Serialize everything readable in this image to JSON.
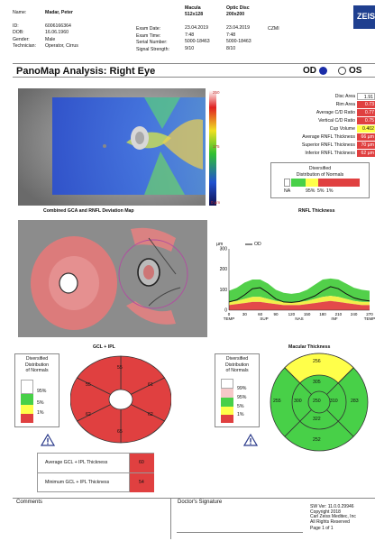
{
  "header": {
    "name_label": "Name:",
    "name_value": "Madar, Peter",
    "id_label": "ID:",
    "id_value": "6006166364",
    "dob_label": "DOB:",
    "dob_value": "16.06.1960",
    "gender_label": "Gender:",
    "gender_value": "Male",
    "tech_label": "Technician:",
    "tech_value": "Operator, Cirrus",
    "exam_date_label": "Exam Date:",
    "exam_time_label": "Exam Time:",
    "serial_label": "Serial Number:",
    "signal_label": "Signal Strength:",
    "macula_title": "Macula",
    "macula_sub": "512x128",
    "disc_title": "Optic Disc",
    "disc_sub": "200x200",
    "macula_date": "23.04.2019",
    "macula_time": "7:48",
    "macula_serial": "5000-18463",
    "macula_signal": "9/10",
    "disc_date": "23.04.2019",
    "disc_time": "7:48",
    "disc_serial": "5000-18463",
    "disc_signal": "8/10",
    "czm": "CZMI",
    "logo": "ZEIS"
  },
  "title": "PanoMap Analysis: Right Eye",
  "eye": {
    "od": "OD",
    "os": "OS"
  },
  "colorbar": {
    "top": "250",
    "mid": "175",
    "bottom": "0 µm"
  },
  "combined_caption": "Combined GCA and RNFL Deviation Map",
  "stats": [
    {
      "label": "Disc Area",
      "value": "1.91 mm",
      "color": "v-wht"
    },
    {
      "label": "Rim Area",
      "value": "0.73 mm",
      "color": "v-red"
    },
    {
      "label": "Average C/D Ratio",
      "value": "0.77",
      "color": "v-red"
    },
    {
      "label": "Vertical C/D Ratio",
      "value": "0.75",
      "color": "v-red"
    },
    {
      "label": "Cup Volume",
      "value": "0.402 mm",
      "color": "v-yel"
    },
    {
      "label": "Average RNFL Thickness",
      "value": "66 µm",
      "color": "v-red"
    },
    {
      "label": "Superior RNFL Thickness",
      "value": "70 µm",
      "color": "v-red"
    },
    {
      "label": "Inferior RNFL Thickness",
      "value": "62 µm",
      "color": "v-red"
    }
  ],
  "dist_legend": {
    "title1": "Diversified",
    "title2": "Distribution of Normals",
    "na": "NA",
    "p95": "95%",
    "p5": "5%",
    "p1": "1%"
  },
  "rnfl_caption": "RNFL Thickness",
  "chart_data": {
    "type": "line",
    "ylabel": "µm",
    "legend": "OD",
    "ylim": [
      0,
      300
    ],
    "y_ticks": [
      "300",
      "200",
      "100",
      "0"
    ],
    "x_ticks": [
      "0",
      "30",
      "60",
      "90",
      "120",
      "150",
      "180",
      "210",
      "240",
      "270"
    ],
    "x_labels": [
      "TEMP",
      "SUP",
      "NAS",
      "INF",
      "TEMP"
    ],
    "series": [
      {
        "name": "OD",
        "x": [
          0,
          15,
          30,
          45,
          60,
          75,
          90,
          105,
          120,
          135,
          150,
          165,
          180,
          195,
          210,
          225,
          240,
          255,
          270
        ],
        "values": [
          40,
          50,
          75,
          105,
          110,
          85,
          55,
          40,
          38,
          42,
          55,
          70,
          95,
          115,
          105,
          80,
          60,
          50,
          45
        ]
      }
    ]
  },
  "gcl_title": "GCL + IPL",
  "gcl_legend": {
    "title1": "Diversified",
    "title2": "Distribution",
    "title3": "of Normals",
    "p95": "95%",
    "p5": "5%",
    "p1": "1%"
  },
  "gcl_sectors": {
    "top": "55",
    "upper_left": "55",
    "upper_right": "61",
    "lower_left": "62",
    "lower_right": "62",
    "bottom": "65"
  },
  "macular_title": "Macular Thickness",
  "mac_legend": {
    "title1": "Diversified",
    "title2": "Distribution",
    "title3": "of Normals",
    "p99": "99%",
    "p95": "95%",
    "p5": "5%",
    "p1": "1%"
  },
  "macular": {
    "outer_top": "256",
    "outer_left": "255",
    "outer_right": "283",
    "outer_bottom": "252",
    "inner_top": "305",
    "inner_left": "300",
    "center": "250",
    "inner_right": "310",
    "inner_bottom": "322"
  },
  "gcl_table": [
    {
      "label": "Average GCL + IPL Thickness",
      "value": "60"
    },
    {
      "label": "Minimum GCL + IPL Thickness",
      "value": "54"
    }
  ],
  "footer": {
    "comments": "Comments",
    "signature": "Doctor's Signature",
    "sw1": "SW Ver: 11.0.0.29946",
    "sw2": "Copyright 2018",
    "sw3": "Carl Zeiss Meditec, Inc",
    "sw4": "All Rights Reserved",
    "page": "Page 1 of 1"
  }
}
